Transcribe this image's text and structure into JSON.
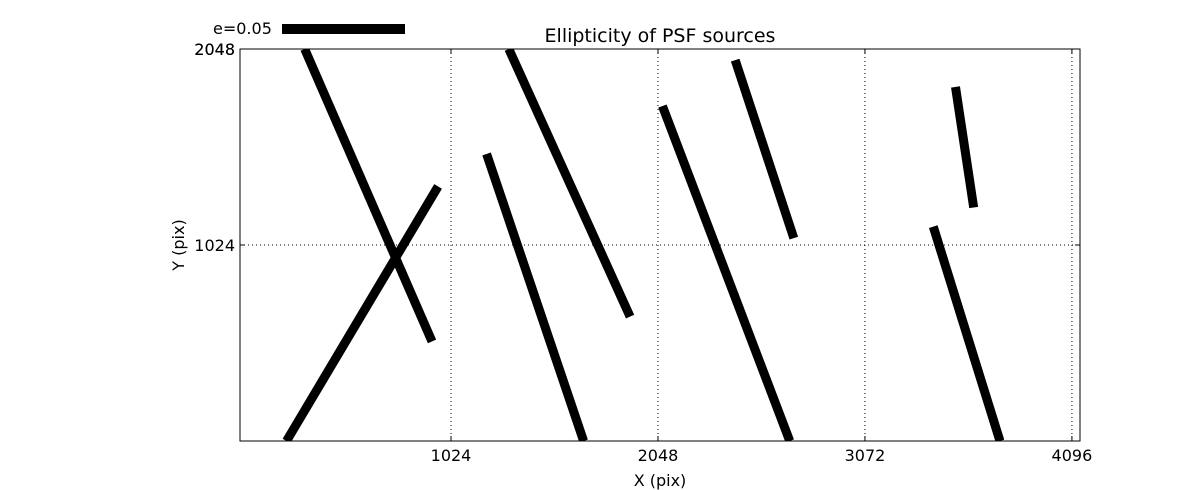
{
  "chart_data": {
    "type": "line",
    "title": "Ellipticity of PSF sources",
    "xlabel": "X (pix)",
    "ylabel": "Y (pix)",
    "xlim": [
      -20,
      4136
    ],
    "ylim": [
      0,
      2048
    ],
    "xticks": [
      1024,
      2048,
      3072,
      4096
    ],
    "yticks": [
      1024,
      2048
    ],
    "xtick_labels": [
      "1024",
      "2048",
      "3072",
      "4096"
    ],
    "ytick_labels": [
      "1024",
      "2048"
    ],
    "ytick_labels_overlay": [
      "2048"
    ],
    "grid": true,
    "grid_style": "dotted",
    "line_color": "#000000",
    "legend": {
      "label": "e=0.05",
      "placement": "top-left, outside axes",
      "scale_ellipticity": 0.05
    },
    "series": [
      {
        "values": [
          [
            300,
            2048
          ],
          [
            930,
            520
          ]
        ]
      },
      {
        "values": [
          [
            210,
            0
          ],
          [
            960,
            1330
          ]
        ]
      },
      {
        "values": [
          [
            1200,
            1500
          ],
          [
            1680,
            0
          ]
        ]
      },
      {
        "values": [
          [
            1310,
            2048
          ],
          [
            1910,
            650
          ]
        ]
      },
      {
        "values": [
          [
            2070,
            1750
          ],
          [
            2700,
            0
          ]
        ]
      },
      {
        "values": [
          [
            2430,
            1990
          ],
          [
            2720,
            1060
          ]
        ]
      },
      {
        "values": [
          [
            3410,
            1120
          ],
          [
            3740,
            0
          ]
        ]
      },
      {
        "values": [
          [
            3520,
            1850
          ],
          [
            3610,
            1220
          ]
        ]
      }
    ]
  }
}
